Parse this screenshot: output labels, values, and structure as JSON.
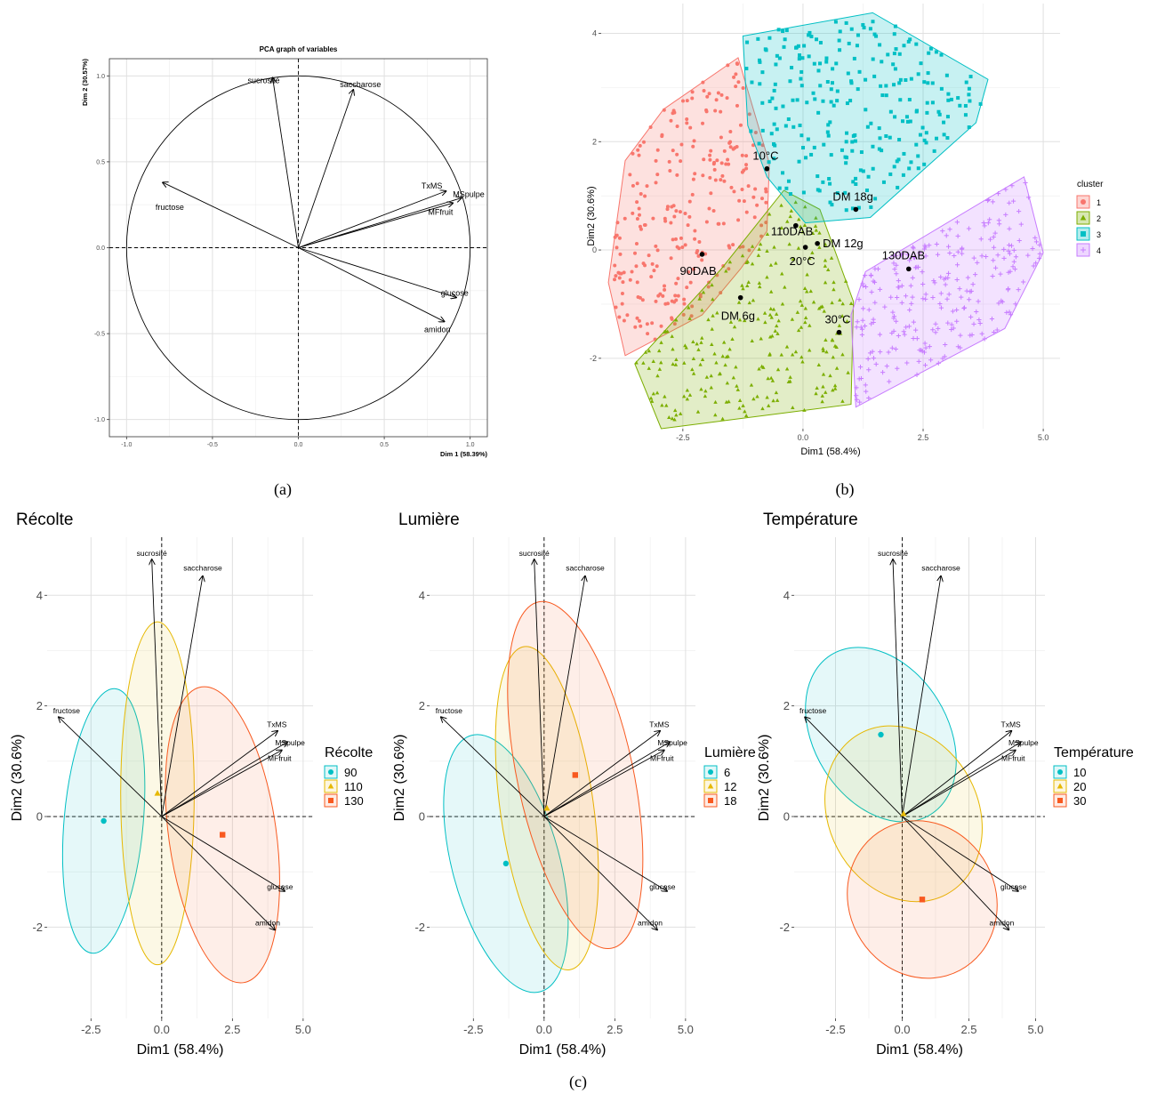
{
  "captions": {
    "a": "(a)",
    "b": "(b)",
    "c": "(c)"
  },
  "chart_data": [
    {
      "id": "a",
      "type": "scatter",
      "title": "PCA graph of variables",
      "xlabel": "Dim 1 (58.39%)",
      "ylabel": "Dim 2 (30.57%)",
      "xlim": [
        -1.1,
        1.1
      ],
      "ylim": [
        -1.1,
        1.1
      ],
      "xticks": [
        -1.0,
        -0.5,
        0.0,
        0.5,
        1.0
      ],
      "xtick_labels": [
        "-1.0",
        "-0.5",
        "0.0",
        "0.5",
        "1.0"
      ],
      "yticks": [
        -1.0,
        -0.5,
        0.0,
        0.5,
        1.0
      ],
      "ytick_labels": [
        "-1.0",
        "-0.5",
        "0.0",
        "0.5",
        "1.0"
      ],
      "grid": true,
      "unit_circle": true,
      "arrows": [
        {
          "label": "sucrosité",
          "x": -0.15,
          "y": 0.99
        },
        {
          "label": "saccharose",
          "x": 0.32,
          "y": 0.92
        },
        {
          "label": "fructose",
          "x": -0.79,
          "y": 0.38
        },
        {
          "label": "TxMS",
          "x": 0.86,
          "y": 0.33
        },
        {
          "label": "MSpulpe",
          "x": 0.95,
          "y": 0.29
        },
        {
          "label": "MFfruit",
          "x": 0.9,
          "y": 0.26
        },
        {
          "label": "glucose",
          "x": 0.92,
          "y": -0.29
        },
        {
          "label": "amidon",
          "x": 0.85,
          "y": -0.43
        }
      ]
    },
    {
      "id": "b",
      "type": "scatter",
      "xlabel": "Dim1 (58.4%)",
      "ylabel": "Dim2 (30.6%)",
      "xlim": [
        -4.2,
        5.35
      ],
      "ylim": [
        -3.3,
        4.55
      ],
      "xticks": [
        -2.5,
        0.0,
        2.5,
        5.0
      ],
      "xtick_labels": [
        "-2.5",
        "0.0",
        "2.5",
        "5.0"
      ],
      "yticks": [
        -2,
        0,
        2,
        4
      ],
      "ytick_labels": [
        "-2",
        "0",
        "2",
        "4"
      ],
      "legend": {
        "title": "cluster",
        "position": "right",
        "entries": [
          "1",
          "2",
          "3",
          "4"
        ]
      },
      "clusters": [
        {
          "name": "1",
          "color": "#F8766D",
          "hull": [
            [
              -3.7,
              1.65
            ],
            [
              -2.9,
              2.6
            ],
            [
              -1.35,
              3.55
            ],
            [
              -0.7,
              1.6
            ],
            [
              -0.75,
              0.35
            ],
            [
              -1.3,
              -0.35
            ],
            [
              -2.1,
              -1.2
            ],
            [
              -3.7,
              -1.95
            ],
            [
              -4.05,
              -0.6
            ]
          ]
        },
        {
          "name": "2",
          "color": "#7CAE00",
          "hull": [
            [
              -3.5,
              -2.1
            ],
            [
              -1.7,
              -0.35
            ],
            [
              -0.4,
              1.1
            ],
            [
              0.35,
              0.75
            ],
            [
              1.05,
              -0.95
            ],
            [
              1.0,
              -2.85
            ],
            [
              -2.95,
              -3.3
            ]
          ]
        },
        {
          "name": "3",
          "color": "#00BFC4",
          "hull": [
            [
              -1.25,
              3.95
            ],
            [
              1.45,
              4.38
            ],
            [
              3.85,
              3.15
            ],
            [
              3.6,
              2.35
            ],
            [
              1.4,
              0.6
            ],
            [
              0.05,
              0.5
            ],
            [
              -0.75,
              1.35
            ],
            [
              -1.15,
              2.3
            ]
          ]
        },
        {
          "name": "4",
          "color": "#C77CFF",
          "hull": [
            [
              1.0,
              -1.2
            ],
            [
              1.3,
              -0.4
            ],
            [
              4.6,
              1.35
            ],
            [
              5.0,
              -0.05
            ],
            [
              4.2,
              -1.45
            ],
            [
              1.1,
              -2.9
            ]
          ]
        }
      ],
      "centroids": [
        {
          "label": "10°C",
          "x": -0.75,
          "y": 1.5
        },
        {
          "label": "DM 18g",
          "x": 1.1,
          "y": 0.75
        },
        {
          "label": "110DAB",
          "x": -0.15,
          "y": 0.45
        },
        {
          "label": "DM 12g",
          "x": 0.3,
          "y": 0.12
        },
        {
          "label": "130DAB",
          "x": 2.2,
          "y": -0.35
        },
        {
          "label": "90DAB",
          "x": -2.1,
          "y": -0.08
        },
        {
          "label": "20°C",
          "x": 0.05,
          "y": 0.05
        },
        {
          "label": "DM 6g",
          "x": -1.3,
          "y": -0.88
        },
        {
          "label": "30°C",
          "x": 0.75,
          "y": -1.52
        }
      ]
    },
    {
      "id": "c1",
      "type": "scatter",
      "title": "Récolte",
      "xlabel": "Dim1 (58.4%)",
      "ylabel": "Dim2 (30.6%)",
      "xlim": [
        -4.05,
        5.35
      ],
      "ylim": [
        -3.65,
        5.05
      ],
      "xticks": [
        -2.5,
        0.0,
        2.5,
        5.0
      ],
      "xtick_labels": [
        "-2.5",
        "0.0",
        "2.5",
        "5.0"
      ],
      "yticks": [
        -2,
        0,
        2,
        4
      ],
      "ytick_labels": [
        "-2",
        "0",
        "2",
        "4"
      ],
      "legend": {
        "title": "Récolte",
        "position": "right",
        "entries": [
          "90",
          "110",
          "130"
        ]
      },
      "groups": [
        {
          "name": "90",
          "color": "#00BFC4",
          "shape": "circle",
          "x": -2.05,
          "y": -0.08,
          "rx": 1.4,
          "ry": 2.4,
          "angle": 5
        },
        {
          "name": "110",
          "color": "#E6B800",
          "shape": "triangle",
          "x": -0.15,
          "y": 0.42,
          "rx": 1.3,
          "ry": 3.1,
          "angle": 0
        },
        {
          "name": "130",
          "color": "#F8591F",
          "shape": "square",
          "x": 2.15,
          "y": -0.33,
          "rx": 1.9,
          "ry": 2.7,
          "angle": -8
        }
      ],
      "arrows": [
        {
          "label": "sucrosité",
          "x": -0.35,
          "y": 4.65
        },
        {
          "label": "saccharose",
          "x": 1.45,
          "y": 4.35
        },
        {
          "label": "fructose",
          "x": -3.65,
          "y": 1.8
        },
        {
          "label": "TxMS",
          "x": 4.1,
          "y": 1.55
        },
        {
          "label": "MSpulpe",
          "x": 4.45,
          "y": 1.35
        },
        {
          "label": "MFfruit",
          "x": 4.25,
          "y": 1.2
        },
        {
          "label": "glucose",
          "x": 4.35,
          "y": -1.35
        },
        {
          "label": "amidon",
          "x": 4.0,
          "y": -2.05
        }
      ]
    },
    {
      "id": "c2",
      "type": "scatter",
      "title": "Lumière",
      "xlabel": "Dim1 (58.4%)",
      "ylabel": "Dim2 (30.6%)",
      "xlim": [
        -4.05,
        5.35
      ],
      "ylim": [
        -3.65,
        5.05
      ],
      "xticks": [
        -2.5,
        0.0,
        2.5,
        5.0
      ],
      "xtick_labels": [
        "-2.5",
        "0.0",
        "2.5",
        "5.0"
      ],
      "yticks": [
        -2,
        0,
        2,
        4
      ],
      "ytick_labels": [
        "-2",
        "0",
        "2",
        "4"
      ],
      "legend": {
        "title": "Lumière",
        "position": "right",
        "entries": [
          "6",
          "12",
          "18"
        ]
      },
      "groups": [
        {
          "name": "6",
          "color": "#00BFC4",
          "shape": "circle",
          "x": -1.35,
          "y": -0.85,
          "rx": 1.9,
          "ry": 2.4,
          "angle": -15
        },
        {
          "name": "12",
          "color": "#E6B800",
          "shape": "triangle",
          "x": 0.1,
          "y": 0.15,
          "rx": 1.65,
          "ry": 2.95,
          "angle": -8
        },
        {
          "name": "18",
          "color": "#F8591F",
          "shape": "square",
          "x": 1.1,
          "y": 0.75,
          "rx": 2.05,
          "ry": 3.2,
          "angle": -12
        }
      ],
      "arrows": [
        {
          "label": "sucrosité",
          "x": -0.35,
          "y": 4.65
        },
        {
          "label": "saccharose",
          "x": 1.45,
          "y": 4.35
        },
        {
          "label": "fructose",
          "x": -3.65,
          "y": 1.8
        },
        {
          "label": "TxMS",
          "x": 4.1,
          "y": 1.55
        },
        {
          "label": "MSpulpe",
          "x": 4.45,
          "y": 1.35
        },
        {
          "label": "MFfruit",
          "x": 4.25,
          "y": 1.2
        },
        {
          "label": "glucose",
          "x": 4.35,
          "y": -1.35
        },
        {
          "label": "amidon",
          "x": 4.0,
          "y": -2.05
        }
      ]
    },
    {
      "id": "c3",
      "type": "scatter",
      "title": "Température",
      "xlabel": "Dim1 (58.4%)",
      "ylabel": "Dim2 (30.6%)",
      "xlim": [
        -4.05,
        5.35
      ],
      "ylim": [
        -3.65,
        5.05
      ],
      "xticks": [
        -2.5,
        0.0,
        2.5,
        5.0
      ],
      "xtick_labels": [
        "-2.5",
        "0.0",
        "2.5",
        "5.0"
      ],
      "yticks": [
        -2,
        0,
        2,
        4
      ],
      "ytick_labels": [
        "-2",
        "0",
        "2",
        "4"
      ],
      "legend": {
        "title": "Température",
        "position": "right",
        "entries": [
          "10",
          "20",
          "30"
        ]
      },
      "groups": [
        {
          "name": "10",
          "color": "#00BFC4",
          "shape": "circle",
          "x": -0.8,
          "y": 1.48,
          "rx": 2.5,
          "ry": 1.7,
          "angle": -32
        },
        {
          "name": "20",
          "color": "#E6B800",
          "shape": "triangle",
          "x": 0.05,
          "y": 0.05,
          "rx": 2.8,
          "ry": 1.65,
          "angle": -28
        },
        {
          "name": "30",
          "color": "#F8591F",
          "shape": "square",
          "x": 0.75,
          "y": -1.5,
          "rx": 2.75,
          "ry": 1.45,
          "angle": -28
        }
      ],
      "arrows": [
        {
          "label": "sucrosité",
          "x": -0.35,
          "y": 4.65
        },
        {
          "label": "saccharose",
          "x": 1.45,
          "y": 4.35
        },
        {
          "label": "fructose",
          "x": -3.65,
          "y": 1.8
        },
        {
          "label": "TxMS",
          "x": 4.1,
          "y": 1.55
        },
        {
          "label": "MSpulpe",
          "x": 4.45,
          "y": 1.35
        },
        {
          "label": "MFfruit",
          "x": 4.25,
          "y": 1.2
        },
        {
          "label": "glucose",
          "x": 4.35,
          "y": -1.35
        },
        {
          "label": "amidon",
          "x": 4.0,
          "y": -2.05
        }
      ]
    }
  ]
}
